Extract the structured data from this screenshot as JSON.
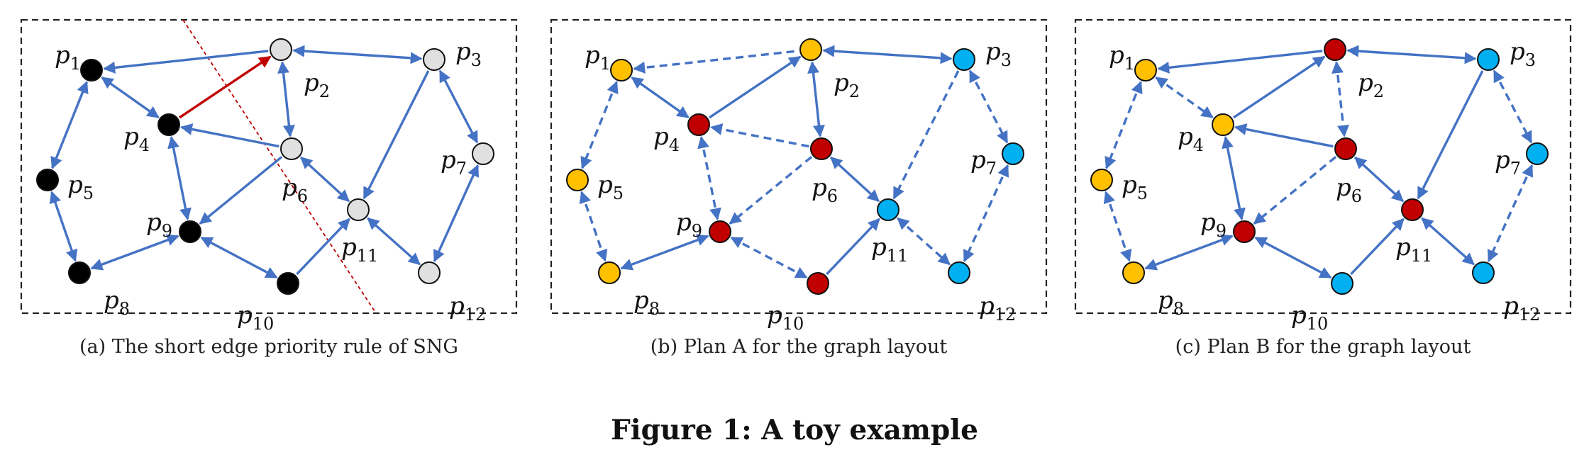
{
  "figure": {
    "title": "Figure 1: A toy example",
    "colors": {
      "edge": "#4472c4",
      "highlight_edge": "#c00000",
      "split_line": "#c00000",
      "black": "#000000",
      "gray": "#e0e0e0",
      "yellow": "#ffc000",
      "red": "#c00000",
      "blue": "#00b0f0",
      "stroke": "#111111"
    },
    "panels": [
      {
        "id": "a",
        "caption": "(a)  The short edge priority rule of SNG",
        "node_colors": {
          "1": "black",
          "2": "gray",
          "3": "gray",
          "4": "black",
          "5": "black",
          "6": "gray",
          "7": "gray",
          "8": "black",
          "9": "black",
          "10": "black",
          "11": "gray",
          "12": "gray"
        },
        "edges": [
          {
            "from": 2,
            "to": 1,
            "style": "solid",
            "arrow": "end"
          },
          {
            "from": 2,
            "to": 3,
            "style": "solid",
            "arrow": "both"
          },
          {
            "from": 1,
            "to": 4,
            "style": "solid",
            "arrow": "both"
          },
          {
            "from": 1,
            "to": 5,
            "style": "solid",
            "arrow": "both"
          },
          {
            "from": 4,
            "to": 2,
            "style": "solid",
            "arrow": "end",
            "highlight": true
          },
          {
            "from": 2,
            "to": 6,
            "style": "solid",
            "arrow": "both"
          },
          {
            "from": 6,
            "to": 4,
            "style": "solid",
            "arrow": "end"
          },
          {
            "from": 4,
            "to": 9,
            "style": "solid",
            "arrow": "both"
          },
          {
            "from": 6,
            "to": 9,
            "style": "solid",
            "arrow": "end"
          },
          {
            "from": 6,
            "to": 11,
            "style": "solid",
            "arrow": "both"
          },
          {
            "from": 3,
            "to": 11,
            "style": "solid",
            "arrow": "end"
          },
          {
            "from": 3,
            "to": 7,
            "style": "solid",
            "arrow": "both"
          },
          {
            "from": 7,
            "to": 12,
            "style": "solid",
            "arrow": "both"
          },
          {
            "from": 11,
            "to": 12,
            "style": "solid",
            "arrow": "both"
          },
          {
            "from": 5,
            "to": 8,
            "style": "solid",
            "arrow": "both"
          },
          {
            "from": 8,
            "to": 9,
            "style": "solid",
            "arrow": "both"
          },
          {
            "from": 9,
            "to": 10,
            "style": "solid",
            "arrow": "both"
          },
          {
            "from": 10,
            "to": 11,
            "style": "solid",
            "arrow": "end"
          }
        ],
        "has_split_line": true
      },
      {
        "id": "b",
        "caption": "(b)  Plan A for the graph layout",
        "node_colors": {
          "1": "yellow",
          "2": "yellow",
          "3": "blue",
          "4": "red",
          "5": "yellow",
          "6": "red",
          "7": "blue",
          "8": "yellow",
          "9": "red",
          "10": "red",
          "11": "blue",
          "12": "blue"
        },
        "edges": [
          {
            "from": 1,
            "to": 2,
            "style": "dashed",
            "arrow": "start"
          },
          {
            "from": 2,
            "to": 3,
            "style": "solid",
            "arrow": "both"
          },
          {
            "from": 1,
            "to": 4,
            "style": "solid",
            "arrow": "both"
          },
          {
            "from": 1,
            "to": 5,
            "style": "dashed",
            "arrow": "both"
          },
          {
            "from": 4,
            "to": 2,
            "style": "solid",
            "arrow": "end"
          },
          {
            "from": 2,
            "to": 6,
            "style": "solid",
            "arrow": "both"
          },
          {
            "from": 6,
            "to": 4,
            "style": "dashed",
            "arrow": "end"
          },
          {
            "from": 4,
            "to": 9,
            "style": "dashed",
            "arrow": "both"
          },
          {
            "from": 6,
            "to": 9,
            "style": "dashed",
            "arrow": "end"
          },
          {
            "from": 6,
            "to": 11,
            "style": "solid",
            "arrow": "both"
          },
          {
            "from": 3,
            "to": 11,
            "style": "dashed",
            "arrow": "end"
          },
          {
            "from": 3,
            "to": 7,
            "style": "dashed",
            "arrow": "both"
          },
          {
            "from": 7,
            "to": 12,
            "style": "dashed",
            "arrow": "both"
          },
          {
            "from": 11,
            "to": 12,
            "style": "dashed",
            "arrow": "both"
          },
          {
            "from": 5,
            "to": 8,
            "style": "dashed",
            "arrow": "both"
          },
          {
            "from": 8,
            "to": 9,
            "style": "solid",
            "arrow": "both"
          },
          {
            "from": 9,
            "to": 10,
            "style": "dashed",
            "arrow": "both"
          },
          {
            "from": 10,
            "to": 11,
            "style": "solid",
            "arrow": "end"
          }
        ],
        "has_split_line": false
      },
      {
        "id": "c",
        "caption": "(c)  Plan B for the graph layout",
        "node_colors": {
          "1": "yellow",
          "2": "red",
          "3": "blue",
          "4": "yellow",
          "5": "yellow",
          "6": "red",
          "7": "blue",
          "8": "yellow",
          "9": "red",
          "10": "blue",
          "11": "red",
          "12": "blue"
        },
        "edges": [
          {
            "from": 2,
            "to": 1,
            "style": "solid",
            "arrow": "end"
          },
          {
            "from": 2,
            "to": 3,
            "style": "solid",
            "arrow": "both"
          },
          {
            "from": 1,
            "to": 4,
            "style": "dashed",
            "arrow": "both"
          },
          {
            "from": 1,
            "to": 5,
            "style": "dashed",
            "arrow": "both"
          },
          {
            "from": 4,
            "to": 2,
            "style": "solid",
            "arrow": "end"
          },
          {
            "from": 2,
            "to": 6,
            "style": "dashed",
            "arrow": "both"
          },
          {
            "from": 6,
            "to": 4,
            "style": "solid",
            "arrow": "end"
          },
          {
            "from": 4,
            "to": 9,
            "style": "solid",
            "arrow": "both"
          },
          {
            "from": 6,
            "to": 9,
            "style": "dashed",
            "arrow": "end"
          },
          {
            "from": 6,
            "to": 11,
            "style": "solid",
            "arrow": "both"
          },
          {
            "from": 3,
            "to": 11,
            "style": "solid",
            "arrow": "end"
          },
          {
            "from": 3,
            "to": 7,
            "style": "dashed",
            "arrow": "both"
          },
          {
            "from": 7,
            "to": 12,
            "style": "dashed",
            "arrow": "both"
          },
          {
            "from": 11,
            "to": 12,
            "style": "solid",
            "arrow": "both"
          },
          {
            "from": 5,
            "to": 8,
            "style": "dashed",
            "arrow": "both"
          },
          {
            "from": 8,
            "to": 9,
            "style": "solid",
            "arrow": "both"
          },
          {
            "from": 9,
            "to": 10,
            "style": "solid",
            "arrow": "both"
          },
          {
            "from": 10,
            "to": 11,
            "style": "solid",
            "arrow": "end"
          }
        ],
        "has_split_line": false
      }
    ],
    "nodes": [
      {
        "id": 1,
        "label": "p",
        "sub": "1"
      },
      {
        "id": 2,
        "label": "p",
        "sub": "2"
      },
      {
        "id": 3,
        "label": "p",
        "sub": "3"
      },
      {
        "id": 4,
        "label": "p",
        "sub": "4"
      },
      {
        "id": 5,
        "label": "p",
        "sub": "5"
      },
      {
        "id": 6,
        "label": "p",
        "sub": "6"
      },
      {
        "id": 7,
        "label": "p",
        "sub": "7"
      },
      {
        "id": 8,
        "label": "p",
        "sub": "8"
      },
      {
        "id": 9,
        "label": "p",
        "sub": "9"
      },
      {
        "id": 10,
        "label": "p",
        "sub": "10"
      },
      {
        "id": 11,
        "label": "p",
        "sub": "11"
      },
      {
        "id": 12,
        "label": "p",
        "sub": "12"
      }
    ]
  }
}
